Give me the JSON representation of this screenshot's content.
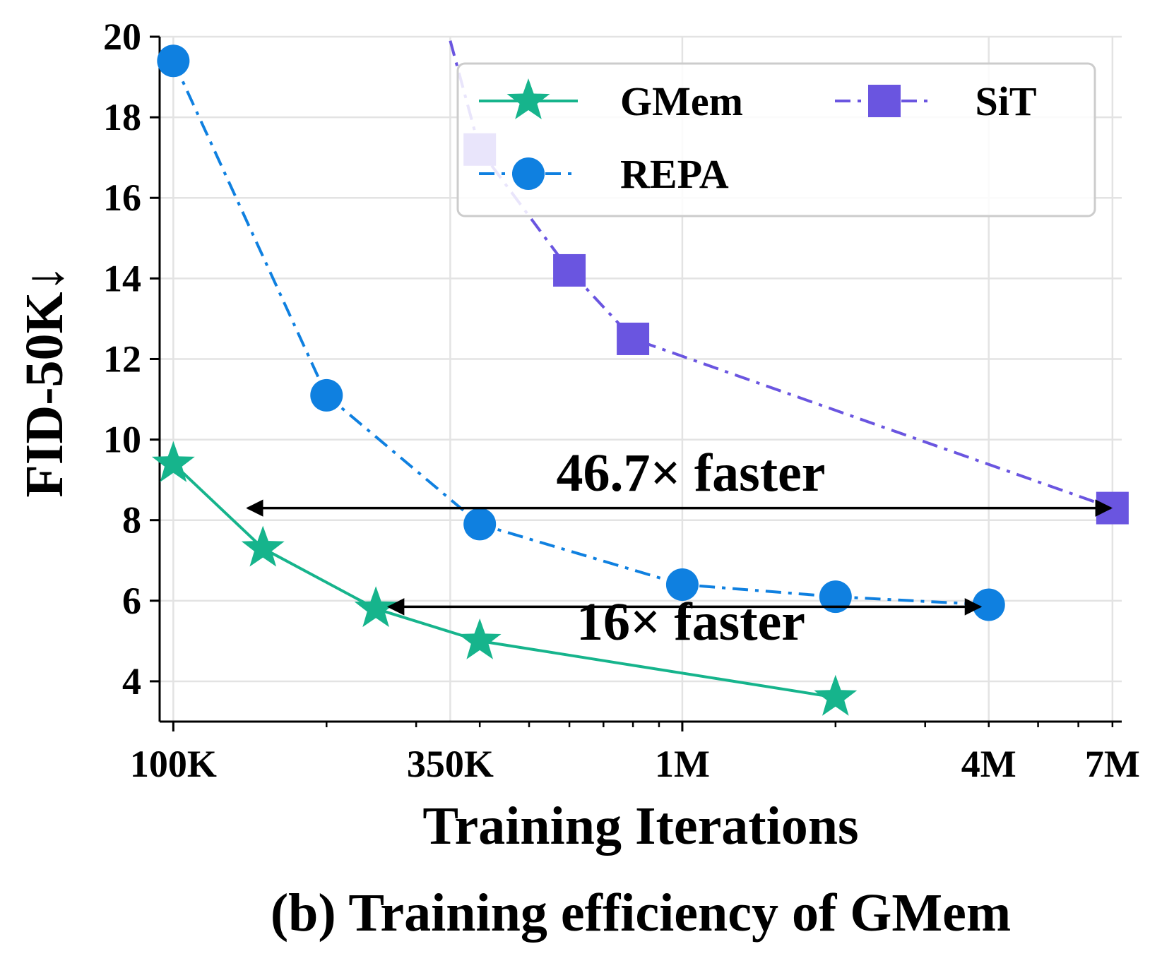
{
  "chart_data": {
    "type": "line",
    "caption": "(b) Training efficiency of GMem",
    "xlabel": "Training Iterations",
    "ylabel": "FID-50K↓",
    "xscale": "log",
    "xlim": [
      94000,
      7300000
    ],
    "ylim": [
      3,
      20
    ],
    "grid": true,
    "legend_position": "top-right",
    "x_ticks": [
      {
        "value": 100000,
        "label": "100K"
      },
      {
        "value": 350000,
        "label": "350K"
      },
      {
        "value": 1000000,
        "label": "1M"
      },
      {
        "value": 4000000,
        "label": "4M"
      },
      {
        "value": 7000000,
        "label": "7M"
      }
    ],
    "y_ticks": [
      {
        "value": 4,
        "label": "4"
      },
      {
        "value": 6,
        "label": "6"
      },
      {
        "value": 8,
        "label": "8"
      },
      {
        "value": 10,
        "label": "10"
      },
      {
        "value": 12,
        "label": "12"
      },
      {
        "value": 14,
        "label": "14"
      },
      {
        "value": 16,
        "label": "16"
      },
      {
        "value": 18,
        "label": "18"
      },
      {
        "value": 20,
        "label": "20"
      }
    ],
    "series": [
      {
        "name": "GMem",
        "color": "#16b48c",
        "marker": "star",
        "line_style": "solid",
        "points": [
          {
            "x": 100000,
            "y": 9.4
          },
          {
            "x": 150000,
            "y": 7.3
          },
          {
            "x": 250000,
            "y": 5.8
          },
          {
            "x": 400000,
            "y": 5.0
          },
          {
            "x": 2000000,
            "y": 3.6
          }
        ]
      },
      {
        "name": "REPA",
        "color": "#0f80e0",
        "marker": "circle",
        "line_style": "dashdot",
        "points": [
          {
            "x": 100000,
            "y": 19.4
          },
          {
            "x": 200000,
            "y": 11.1
          },
          {
            "x": 400000,
            "y": 7.9
          },
          {
            "x": 1000000,
            "y": 6.4
          },
          {
            "x": 2000000,
            "y": 6.1
          },
          {
            "x": 4000000,
            "y": 5.9
          }
        ]
      },
      {
        "name": "SiT",
        "color": "#6a55e0",
        "marker": "square",
        "line_style": "dashdot",
        "points": [
          {
            "x": 350000,
            "y": 19.9
          },
          {
            "x": 400000,
            "y": 17.2
          },
          {
            "x": 600000,
            "y": 14.2
          },
          {
            "x": 800000,
            "y": 12.5
          },
          {
            "x": 7000000,
            "y": 8.3
          }
        ]
      }
    ],
    "legend": [
      {
        "name": "GMem",
        "color": "#16b48c",
        "marker": "star"
      },
      {
        "name": "SiT",
        "color": "#6a55e0",
        "marker": "square"
      },
      {
        "name": "REPA",
        "color": "#0f80e0",
        "marker": "circle"
      }
    ],
    "annotations": [
      {
        "text": "46.7× faster",
        "from": [
          140000,
          8.3
        ],
        "to": [
          6950000,
          8.3
        ]
      },
      {
        "text": "16× faster",
        "from": [
          265000,
          5.85
        ],
        "to": [
          3850000,
          5.85
        ]
      }
    ]
  }
}
